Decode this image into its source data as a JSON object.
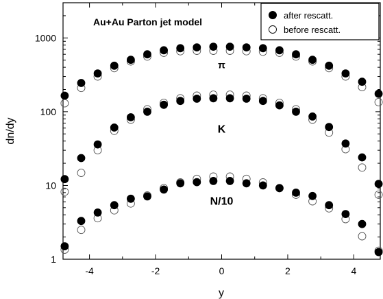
{
  "chart_data": {
    "type": "scatter",
    "title": "Au+Au Parton jet model",
    "xlabel": "y",
    "ylabel": "dn/dy",
    "xlim": [
      -4.8,
      4.8
    ],
    "ylim": [
      1,
      3000
    ],
    "yscale": "log",
    "x_ticks": [
      -4,
      -2,
      0,
      2,
      4
    ],
    "x_tick_labels": [
      "-4",
      "-2",
      "0",
      "2",
      "4"
    ],
    "y_ticks": [
      1,
      10,
      100,
      1000
    ],
    "y_tick_labels": [
      "1",
      "10",
      "100",
      "1000"
    ],
    "grid": false,
    "legend_position": "top-right",
    "legend": [
      {
        "label": "after rescatt.",
        "marker": "filled-circle"
      },
      {
        "label": "before rescatt.",
        "marker": "open-circle"
      }
    ],
    "annotations": [
      {
        "text": "π",
        "x": 0,
        "y": 390
      },
      {
        "text": "K",
        "x": 0,
        "y": 52
      },
      {
        "text": "N/10",
        "x": 0,
        "y": 5.5
      }
    ],
    "x": [
      -4.75,
      -4.25,
      -3.75,
      -3.25,
      -2.75,
      -2.25,
      -1.75,
      -1.25,
      -0.75,
      -0.25,
      0.25,
      0.75,
      1.25,
      1.75,
      2.25,
      2.75,
      3.25,
      3.75,
      4.25,
      4.75
    ],
    "series": [
      {
        "name": "after rescatt.",
        "group": "π",
        "marker": "filled",
        "values": [
          165,
          245,
          330,
          420,
          505,
          600,
          680,
          725,
          745,
          760,
          760,
          745,
          725,
          680,
          600,
          505,
          420,
          330,
          255,
          175
        ]
      },
      {
        "name": "before rescatt.",
        "group": "π",
        "marker": "open",
        "values": [
          130,
          210,
          300,
          390,
          480,
          560,
          630,
          660,
          670,
          670,
          670,
          660,
          650,
          630,
          560,
          480,
          390,
          300,
          215,
          135
        ]
      },
      {
        "name": "after rescatt.",
        "group": "K",
        "marker": "filled",
        "values": [
          12.2,
          23.5,
          36,
          61,
          84,
          100,
          124,
          140,
          150,
          152,
          152,
          150,
          140,
          122,
          100,
          86,
          62,
          37,
          24,
          10.5
        ]
      },
      {
        "name": "before rescatt.",
        "group": "K",
        "marker": "open",
        "values": [
          8.2,
          14.8,
          30,
          55,
          78,
          108,
          132,
          152,
          165,
          170,
          170,
          165,
          152,
          132,
          108,
          78,
          52,
          31,
          17.5,
          7.5
        ]
      },
      {
        "name": "after rescatt.",
        "group": "N/10",
        "marker": "filled",
        "values": [
          1.5,
          3.3,
          4.3,
          5.4,
          6.6,
          7.1,
          8.8,
          10.7,
          11.1,
          11.5,
          11.5,
          10.7,
          10.0,
          9.2,
          8.0,
          7.2,
          5.4,
          4.1,
          3.0,
          1.25
        ]
      },
      {
        "name": "before rescatt.",
        "group": "N/10",
        "marker": "open",
        "values": [
          1.35,
          2.5,
          3.6,
          4.6,
          5.7,
          7.3,
          9.2,
          11.0,
          12.3,
          13.2,
          13.2,
          12.3,
          11.0,
          9.2,
          7.5,
          6.1,
          4.9,
          3.5,
          2.05,
          1.3
        ]
      }
    ]
  }
}
